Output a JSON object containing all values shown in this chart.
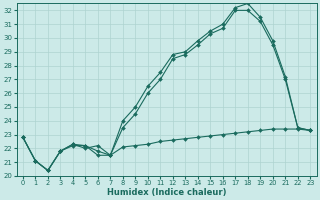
{
  "bg_color": "#cceae8",
  "grid_color": "#aed4d0",
  "line_color": "#1a6b5e",
  "xlabel": "Humidex (Indice chaleur)",
  "xlim": [
    -0.5,
    23.5
  ],
  "ylim": [
    20.0,
    32.5
  ],
  "yticks": [
    20,
    21,
    22,
    23,
    24,
    25,
    26,
    27,
    28,
    29,
    30,
    31,
    32
  ],
  "xticks": [
    0,
    1,
    2,
    3,
    4,
    5,
    6,
    7,
    8,
    9,
    10,
    11,
    12,
    13,
    14,
    15,
    16,
    17,
    18,
    19,
    20,
    21,
    22,
    23
  ],
  "line1_x": [
    0,
    1,
    2,
    3,
    4,
    5,
    6,
    7,
    8,
    9,
    10,
    11,
    12,
    13,
    14,
    15,
    16,
    17,
    18,
    19,
    20,
    21,
    22,
    23
  ],
  "line1_y": [
    22.8,
    21.1,
    20.4,
    21.8,
    22.2,
    22.2,
    21.5,
    21.5,
    22.1,
    22.2,
    22.3,
    22.5,
    22.6,
    22.7,
    22.8,
    22.9,
    23.0,
    23.1,
    23.2,
    23.3,
    23.4,
    23.4,
    23.4,
    23.3
  ],
  "line2_x": [
    0,
    1,
    2,
    3,
    4,
    5,
    6,
    7,
    8,
    9,
    10,
    11,
    12,
    13,
    14,
    15,
    16,
    17,
    18,
    19,
    20,
    21,
    22,
    23
  ],
  "line2_y": [
    22.8,
    21.1,
    20.4,
    21.8,
    22.3,
    22.2,
    21.8,
    21.5,
    23.5,
    24.5,
    26.0,
    27.0,
    28.5,
    28.8,
    29.5,
    30.3,
    30.7,
    32.0,
    32.0,
    31.2,
    29.5,
    27.0,
    23.5,
    23.3
  ],
  "line3_x": [
    0,
    1,
    2,
    3,
    4,
    5,
    6,
    7,
    8,
    9,
    10,
    11,
    12,
    13,
    14,
    15,
    16,
    17,
    18,
    19,
    20,
    21,
    22,
    23
  ],
  "line3_y": [
    22.8,
    21.1,
    20.4,
    21.8,
    22.3,
    22.0,
    22.2,
    21.5,
    24.0,
    25.0,
    26.5,
    27.5,
    28.8,
    29.0,
    29.8,
    30.5,
    31.0,
    32.2,
    32.5,
    31.5,
    29.8,
    27.2,
    23.5,
    23.3
  ]
}
